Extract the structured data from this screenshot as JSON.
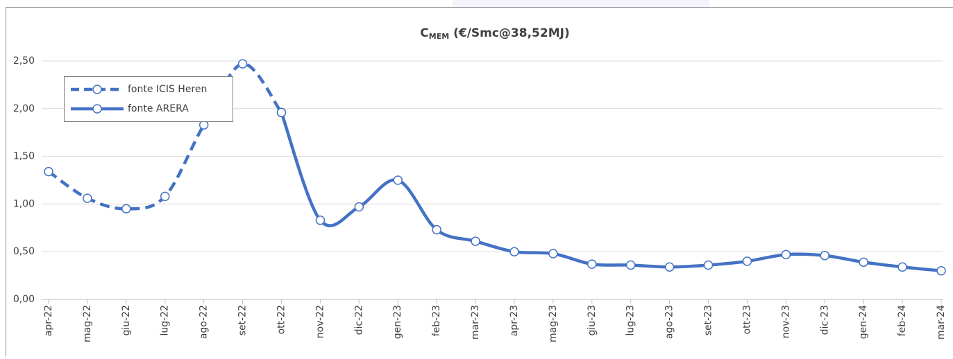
{
  "chart_data": {
    "type": "line",
    "title": {
      "main": "C",
      "subscript": "MEM",
      "rest": "(€/Smc@38,52MJ)"
    },
    "categories": [
      "apr-22",
      "mag-22",
      "giu-22",
      "lug-22",
      "ago-22",
      "set-22",
      "ott-22",
      "nov-22",
      "dic-22",
      "gen-23",
      "feb-23",
      "mar-23",
      "apr-23",
      "mag-23",
      "giu-23",
      "lug-23",
      "ago-23",
      "set-23",
      "ott-23",
      "nov-23",
      "dic-23",
      "gen-24",
      "feb-24",
      "mar-24"
    ],
    "series": [
      {
        "name": "fonte ICIS Heren",
        "color": "#4472c4",
        "dash": true,
        "values": [
          1.34,
          1.06,
          0.95,
          1.08,
          1.83,
          2.47,
          1.96,
          null,
          null,
          null,
          null,
          null,
          null,
          null,
          null,
          null,
          null,
          null,
          null,
          null,
          null,
          null,
          null,
          null
        ]
      },
      {
        "name": "fonte ARERA",
        "color": "#4472c4",
        "dash": false,
        "values": [
          null,
          null,
          null,
          null,
          null,
          null,
          1.96,
          0.83,
          0.97,
          1.25,
          0.73,
          0.61,
          0.5,
          0.48,
          0.37,
          0.36,
          0.34,
          0.36,
          0.4,
          0.47,
          0.46,
          0.39,
          0.34,
          0.3
        ]
      }
    ],
    "ylim": [
      0,
      2.5
    ],
    "yticks": [
      {
        "value": 0,
        "label": "0,00"
      },
      {
        "value": 0.5,
        "label": "0,50"
      },
      {
        "value": 1,
        "label": "1,00"
      },
      {
        "value": 1.5,
        "label": "1,50"
      },
      {
        "value": 2,
        "label": "2,00"
      },
      {
        "value": 2.5,
        "label": "2,50"
      }
    ],
    "grid": true,
    "legend": "top-left"
  }
}
